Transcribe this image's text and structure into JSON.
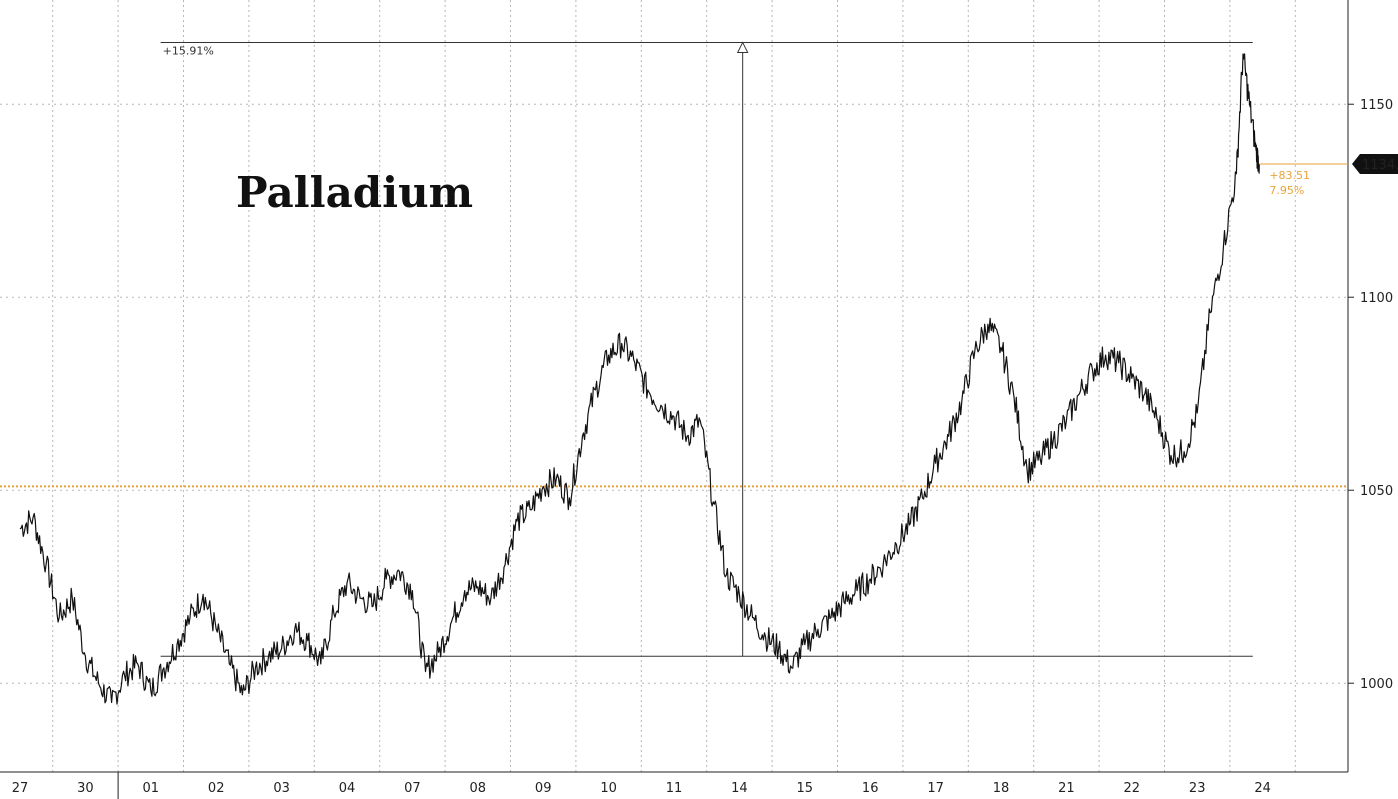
{
  "chart_data": {
    "type": "line",
    "title": "Palladium",
    "xlabel": "",
    "ylabel": "",
    "ylim": [
      977,
      1177
    ],
    "yticks": [
      1000,
      1050,
      1100,
      1150
    ],
    "ytick_labels": [
      "1000",
      "1050",
      "1100",
      "1150"
    ],
    "categories": [
      "27",
      "30",
      "01",
      "02",
      "03",
      "04",
      "07",
      "08",
      "09",
      "10",
      "11",
      "14",
      "15",
      "16",
      "17",
      "18",
      "21",
      "22",
      "23",
      "24"
    ],
    "grid": true,
    "series": [
      {
        "values": [
          [
            0.0,
            1040
          ],
          [
            0.2,
            1043
          ],
          [
            0.4,
            1031
          ],
          [
            0.6,
            1017
          ],
          [
            0.8,
            1022
          ],
          [
            1.0,
            1007
          ],
          [
            1.2,
            1000
          ],
          [
            1.4,
            995
          ],
          [
            1.6,
            1002
          ],
          [
            1.8,
            1005
          ],
          [
            2.0,
            998
          ],
          [
            2.2,
            1004
          ],
          [
            2.4,
            1010
          ],
          [
            2.6,
            1017
          ],
          [
            2.8,
            1023
          ],
          [
            3.0,
            1014
          ],
          [
            3.2,
            1005
          ],
          [
            3.4,
            997
          ],
          [
            3.6,
            1004
          ],
          [
            3.8,
            1007
          ],
          [
            4.0,
            1009
          ],
          [
            4.2,
            1014
          ],
          [
            4.4,
            1011
          ],
          [
            4.6,
            1005
          ],
          [
            4.8,
            1018
          ],
          [
            5.0,
            1026
          ],
          [
            5.2,
            1022
          ],
          [
            5.4,
            1020
          ],
          [
            5.6,
            1027
          ],
          [
            5.8,
            1029
          ],
          [
            6.0,
            1024
          ],
          [
            6.2,
            1003
          ],
          [
            6.4,
            1008
          ],
          [
            6.6,
            1016
          ],
          [
            6.8,
            1024
          ],
          [
            7.0,
            1025
          ],
          [
            7.2,
            1022
          ],
          [
            7.4,
            1030
          ],
          [
            7.6,
            1042
          ],
          [
            7.8,
            1045
          ],
          [
            8.0,
            1051
          ],
          [
            8.2,
            1053
          ],
          [
            8.4,
            1048
          ],
          [
            8.6,
            1064
          ],
          [
            8.8,
            1076
          ],
          [
            9.0,
            1085
          ],
          [
            9.2,
            1088
          ],
          [
            9.4,
            1083
          ],
          [
            9.6,
            1076
          ],
          [
            9.8,
            1072
          ],
          [
            10.0,
            1069
          ],
          [
            10.2,
            1064
          ],
          [
            10.4,
            1068
          ],
          [
            10.6,
            1047
          ],
          [
            10.8,
            1028
          ],
          [
            11.0,
            1023
          ],
          [
            11.2,
            1017
          ],
          [
            11.4,
            1012
          ],
          [
            11.6,
            1009
          ],
          [
            11.8,
            1004
          ],
          [
            12.0,
            1010
          ],
          [
            12.2,
            1014
          ],
          [
            12.4,
            1017
          ],
          [
            12.6,
            1021
          ],
          [
            12.8,
            1024
          ],
          [
            13.0,
            1027
          ],
          [
            13.2,
            1031
          ],
          [
            13.4,
            1036
          ],
          [
            13.6,
            1041
          ],
          [
            13.8,
            1048
          ],
          [
            14.0,
            1057
          ],
          [
            14.2,
            1064
          ],
          [
            14.4,
            1073
          ],
          [
            14.6,
            1086
          ],
          [
            14.8,
            1093
          ],
          [
            15.0,
            1087
          ],
          [
            15.2,
            1074
          ],
          [
            15.4,
            1055
          ],
          [
            15.6,
            1058
          ],
          [
            15.8,
            1063
          ],
          [
            16.0,
            1068
          ],
          [
            16.2,
            1075
          ],
          [
            16.4,
            1081
          ],
          [
            16.6,
            1085
          ],
          [
            16.8,
            1083
          ],
          [
            17.0,
            1079
          ],
          [
            17.2,
            1075
          ],
          [
            17.4,
            1068
          ],
          [
            17.6,
            1059
          ],
          [
            17.8,
            1060
          ],
          [
            18.0,
            1070
          ],
          [
            18.2,
            1096
          ],
          [
            18.4,
            1113
          ],
          [
            18.6,
            1132
          ],
          [
            18.7,
            1163
          ],
          [
            18.8,
            1150
          ],
          [
            18.9,
            1138
          ],
          [
            18.95,
            1134.5
          ]
        ]
      }
    ],
    "last_value": "1134.5",
    "reference_line": 1051,
    "change_abs": "+83.51",
    "change_pct": "7.95%",
    "range_annotation": "+15.91%",
    "range_low": 1007,
    "range_high": 1166,
    "range_start_x": 2.15,
    "range_end_x": 18.85,
    "range_marker_x": 11.05,
    "colors": {
      "line": "#111111",
      "reference": "#e8a33a",
      "grid": "#b8b8b8",
      "axis": "#222222",
      "last_price_bg": "#111111",
      "last_price_text": "#ffffff",
      "change_text": "#e8a33a"
    }
  }
}
